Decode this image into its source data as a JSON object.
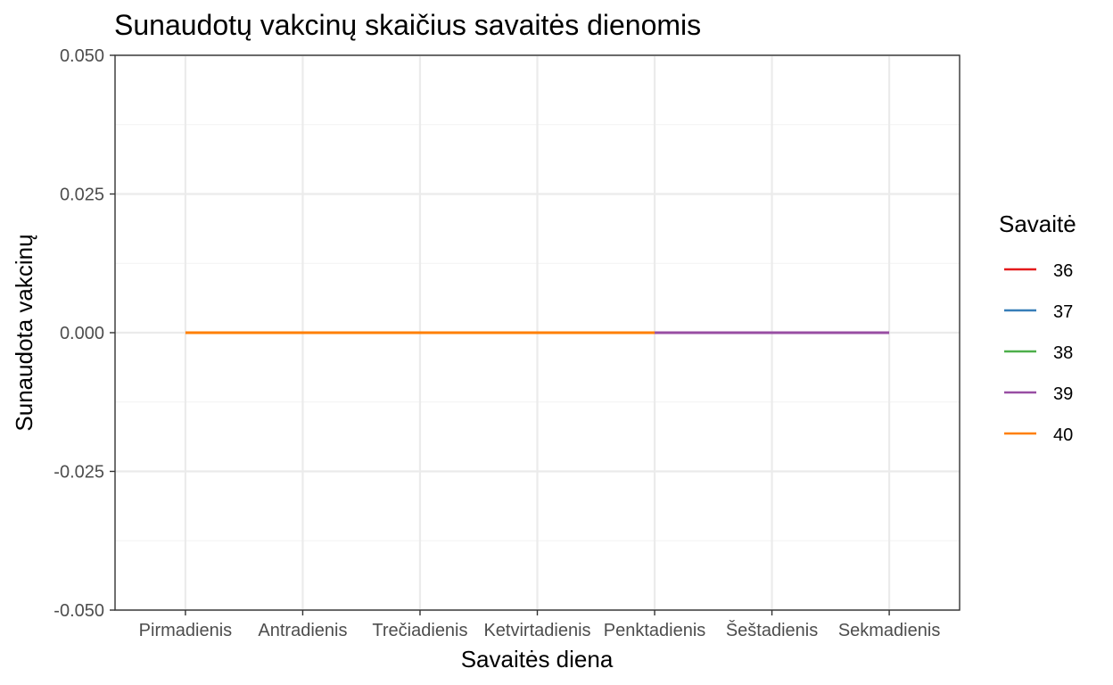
{
  "chart_data": {
    "type": "line",
    "title": "Sunaudotų vakcinų skaičius savaitės dienomis",
    "xlabel": "Savaitės diena",
    "ylabel": "Sunaudota vakcinų",
    "categories": [
      "Pirmadienis",
      "Antradienis",
      "Trečiadienis",
      "Ketvirtadienis",
      "Penktadienis",
      "Šeštadienis",
      "Sekmadienis"
    ],
    "ylim": [
      -0.05,
      0.05
    ],
    "yticks": [
      "0.050",
      "0.025",
      "0.000",
      "-0.025",
      "-0.050"
    ],
    "ytick_values": [
      0.05,
      0.025,
      0.0,
      -0.025,
      -0.05
    ],
    "grid": true,
    "legend": {
      "title": "Savaitė",
      "placement": "right"
    },
    "series": [
      {
        "name": "36",
        "color": "#e41a1c",
        "x": [],
        "values": []
      },
      {
        "name": "37",
        "color": "#377eb8",
        "x": [],
        "values": []
      },
      {
        "name": "38",
        "color": "#4daf4a",
        "x": [],
        "values": []
      },
      {
        "name": "39",
        "color": "#984ea3",
        "x": [
          "Penktadienis",
          "Šeštadienis",
          "Sekmadienis"
        ],
        "values": [
          0,
          0,
          0
        ]
      },
      {
        "name": "40",
        "color": "#ff7f00",
        "x": [
          "Pirmadienis",
          "Antradienis",
          "Trečiadienis",
          "Ketvirtadienis",
          "Penktadienis"
        ],
        "values": [
          0,
          0,
          0,
          0,
          0
        ]
      }
    ]
  }
}
